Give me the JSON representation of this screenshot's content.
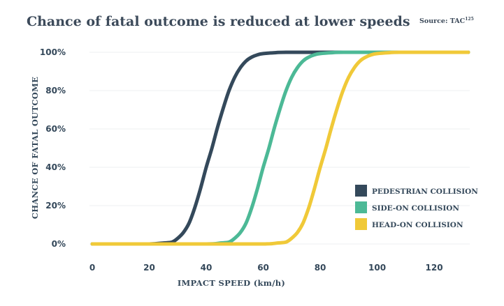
{
  "header": {
    "title": "Chance of fatal outcome is reduced at lower speeds",
    "source_label": "Source: TAC",
    "source_sup": "125"
  },
  "colors": {
    "pedestrian": "#34495b",
    "side_on": "#4cb996",
    "head_on": "#f0c938",
    "text": "#34485a",
    "grid": "#eceff2"
  },
  "chart_data": {
    "type": "line",
    "title": "Chance of fatal outcome is reduced at lower speeds",
    "xlabel": "IMPACT SPEED (km/h)",
    "ylabel": "CHANCE OF FATAL OUTCOME",
    "xlim": [
      0,
      132
    ],
    "ylim": [
      0,
      100
    ],
    "x_ticks": [
      0,
      20,
      40,
      60,
      80,
      100,
      120
    ],
    "x_tick_labels": [
      "0",
      "20",
      "40",
      "60",
      "80",
      "100",
      "120"
    ],
    "y_ticks": [
      0,
      20,
      40,
      60,
      80,
      100
    ],
    "y_tick_labels": [
      "0%",
      "20%",
      "40%",
      "60%",
      "80%",
      "100%"
    ],
    "grid": true,
    "legend_position": "bottom-right",
    "series": [
      {
        "name": "PEDESTRIAN COLLISION",
        "color_key": "pedestrian",
        "x": [
          0,
          10,
          20,
          25,
          28,
          30,
          32,
          34,
          36,
          38,
          40,
          42,
          44,
          46,
          48,
          50,
          52,
          54,
          56,
          58,
          60,
          64,
          68,
          80,
          100,
          120,
          132
        ],
        "y": [
          0,
          0,
          0,
          0.5,
          1,
          3,
          6,
          11,
          19,
          29,
          40,
          50,
          61,
          71,
          80,
          87,
          92,
          95.5,
          97.5,
          98.7,
          99.3,
          99.8,
          100,
          100,
          100,
          100,
          100
        ]
      },
      {
        "name": "SIDE-ON COLLISION",
        "color_key": "side_on",
        "x": [
          0,
          20,
          40,
          45,
          48,
          50,
          52,
          54,
          56,
          58,
          60,
          62,
          64,
          66,
          68,
          70,
          72,
          74,
          76,
          78,
          80,
          84,
          88,
          100,
          120,
          132
        ],
        "y": [
          0,
          0,
          0,
          0.5,
          1,
          3,
          6,
          11,
          19,
          29,
          40,
          50,
          61,
          71,
          80,
          87,
          92,
          95.5,
          97.5,
          98.7,
          99.3,
          99.8,
          100,
          100,
          100,
          100
        ]
      },
      {
        "name": "HEAD-ON COLLISION",
        "color_key": "head_on",
        "x": [
          0,
          20,
          40,
          60,
          65,
          68,
          70,
          72,
          74,
          76,
          78,
          80,
          82,
          84,
          86,
          88,
          90,
          92,
          94,
          96,
          98,
          100,
          104,
          108,
          120,
          132
        ],
        "y": [
          0,
          0,
          0,
          0,
          0.5,
          1,
          3,
          6,
          11,
          19,
          29,
          40,
          50,
          61,
          71,
          80,
          87,
          92,
          95.5,
          97.5,
          98.7,
          99.3,
          99.8,
          100,
          100,
          100
        ]
      }
    ]
  }
}
